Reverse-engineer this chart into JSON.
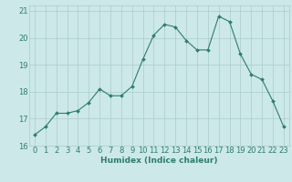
{
  "x": [
    0,
    1,
    2,
    3,
    4,
    5,
    6,
    7,
    8,
    9,
    10,
    11,
    12,
    13,
    14,
    15,
    16,
    17,
    18,
    19,
    20,
    21,
    22,
    23
  ],
  "y": [
    16.4,
    16.7,
    17.2,
    17.2,
    17.3,
    17.6,
    18.1,
    17.85,
    17.85,
    18.2,
    19.2,
    20.1,
    20.5,
    20.4,
    19.9,
    19.55,
    19.55,
    20.8,
    20.6,
    19.4,
    18.65,
    18.45,
    17.65,
    16.7
  ],
  "line_color": "#2e7d6e",
  "marker": "D",
  "marker_size": 2.0,
  "bg_color": "#cce8e8",
  "grid_color": "#aacccc",
  "xlabel": "Humidex (Indice chaleur)",
  "ylim": [
    16,
    21.2
  ],
  "xlim": [
    -0.5,
    23.5
  ],
  "yticks": [
    16,
    17,
    18,
    19,
    20,
    21
  ],
  "xticks": [
    0,
    1,
    2,
    3,
    4,
    5,
    6,
    7,
    8,
    9,
    10,
    11,
    12,
    13,
    14,
    15,
    16,
    17,
    18,
    19,
    20,
    21,
    22,
    23
  ],
  "tick_fontsize": 6.0,
  "xlabel_fontsize": 6.5
}
